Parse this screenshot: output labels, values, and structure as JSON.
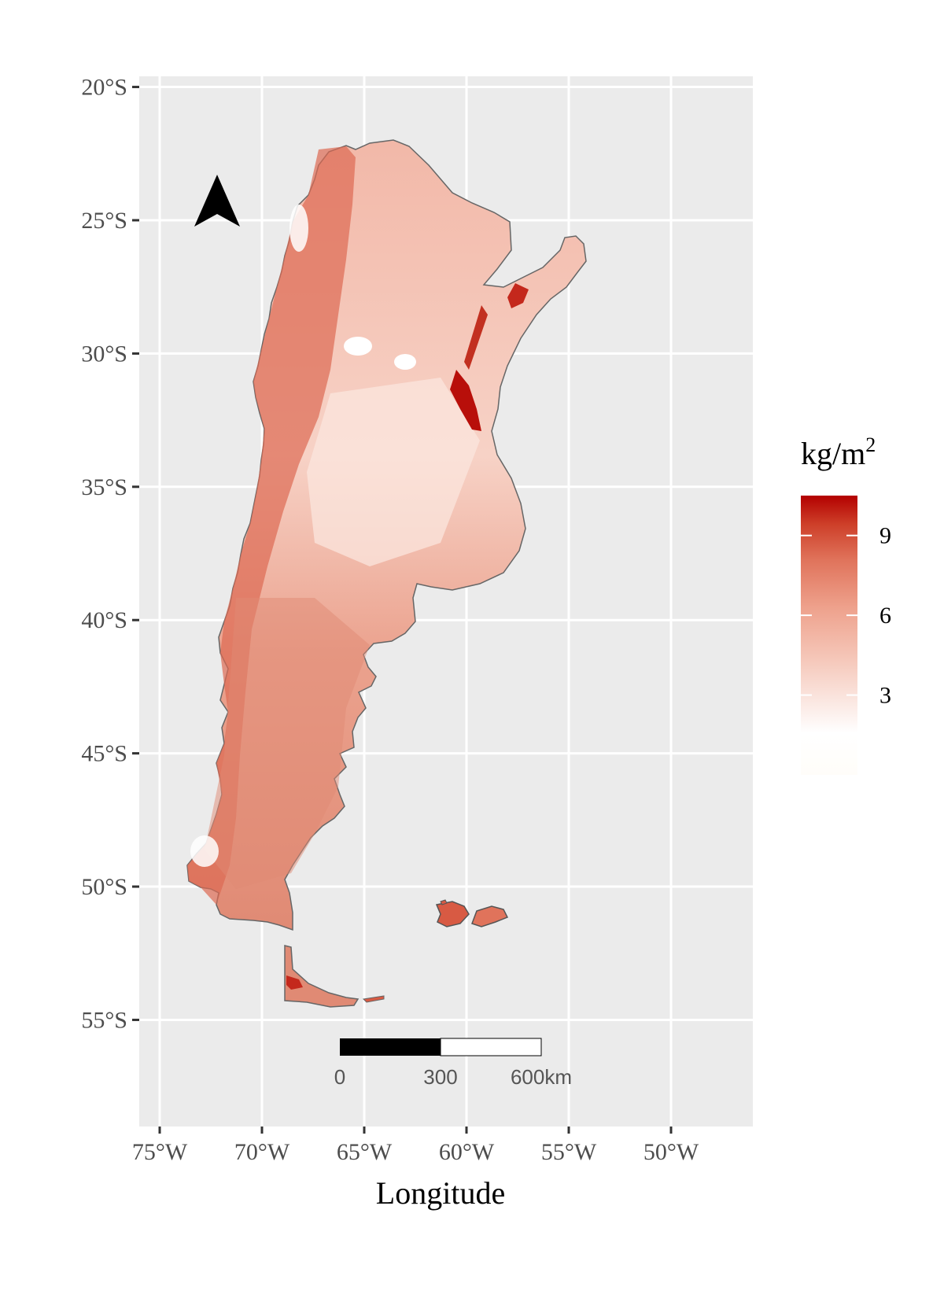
{
  "map": {
    "panel_background": "#ebebeb",
    "grid_color": "#ffffff",
    "land_colors": {
      "low": "#fbe4dc",
      "mid": "#eea18c",
      "high": "#d85a43",
      "max": "#b80f0a"
    },
    "xlabel": "Longitude",
    "x_ticks": [
      "75°W",
      "70°W",
      "65°W",
      "60°W",
      "55°W",
      "50°W"
    ],
    "x_tick_values": [
      -75,
      -70,
      -65,
      -60,
      -55,
      -50
    ],
    "y_ticks": [
      "20°S",
      "25°S",
      "30°S",
      "35°S",
      "40°S",
      "45°S",
      "50°S",
      "55°S"
    ],
    "y_tick_values": [
      -20,
      -25,
      -30,
      -35,
      -40,
      -45,
      -50,
      -55
    ],
    "xlim": [
      -76,
      -46
    ],
    "ylim": [
      -59,
      -19.6
    ]
  },
  "north_arrow": {
    "icon": "north-arrow-icon"
  },
  "scale_bar": {
    "labels": [
      "0",
      "300",
      "600km"
    ]
  },
  "legend": {
    "title_base": "kg/m",
    "title_sup": "2",
    "labels": [
      "9",
      "6",
      "3"
    ],
    "values": [
      9,
      6,
      3
    ],
    "range": [
      0,
      10.5
    ],
    "colors": [
      "#fffdf9",
      "#ffffff",
      "#f5c6b8",
      "#eea18c",
      "#e0735b",
      "#cd3e28",
      "#b30000"
    ]
  }
}
